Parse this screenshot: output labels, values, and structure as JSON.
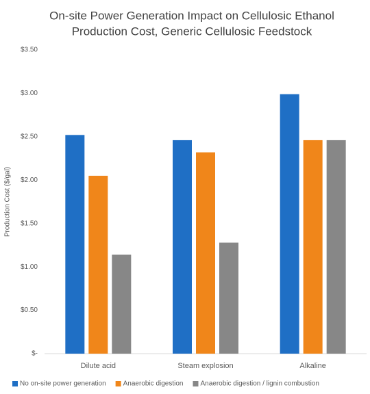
{
  "chart_data": {
    "type": "bar",
    "title": [
      "On-site Power Generation Impact on Cellulosic Ethanol",
      "Production Cost, Generic Cellulosic Feedstock"
    ],
    "y_label": "Production Cost ($/gal)",
    "categories": [
      "Dilute acid",
      "Steam explosion",
      "Alkaline"
    ],
    "series": [
      {
        "name": "No on-site power generation",
        "color": "#1f6fc5",
        "values": [
          2.52,
          2.46,
          2.99
        ]
      },
      {
        "name": "Anaerobic digestion",
        "color": "#f0861a",
        "values": [
          2.05,
          2.32,
          2.46
        ]
      },
      {
        "name": "Anaerobic digestion / lignin combustion",
        "color": "#878787",
        "values": [
          1.14,
          1.28,
          2.46
        ]
      }
    ],
    "ylim": [
      0,
      3.5
    ],
    "yticks": [
      {
        "value": 0,
        "label": "$-"
      },
      {
        "value": 0.5,
        "label": "$0.50"
      },
      {
        "value": 1,
        "label": "$1.00"
      },
      {
        "value": 1.5,
        "label": "$1.50"
      },
      {
        "value": 2,
        "label": "$2.00"
      },
      {
        "value": 2.5,
        "label": "$2.50"
      },
      {
        "value": 3,
        "label": "$3.00"
      },
      {
        "value": 3.5,
        "label": "$3.50"
      }
    ],
    "grid": false,
    "legend": "bottom"
  }
}
